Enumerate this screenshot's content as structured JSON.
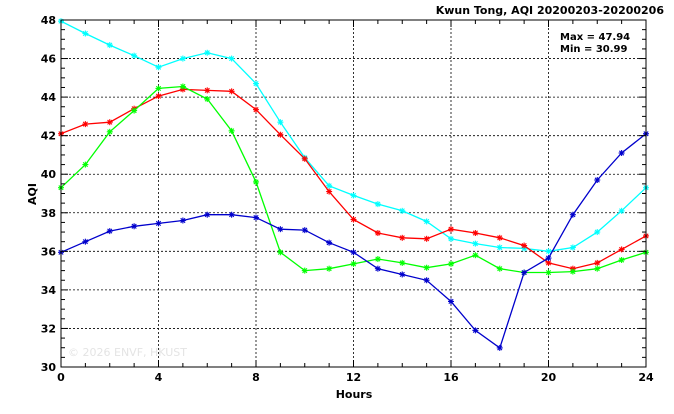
{
  "chart_data": {
    "type": "line",
    "title": "Kwun Tong, AQI 20200203-20200206",
    "xlabel": "Hours",
    "ylabel": "AQI",
    "xlim": [
      0,
      24
    ],
    "ylim": [
      30,
      48
    ],
    "xticks": [
      0,
      4,
      8,
      12,
      16,
      20,
      24
    ],
    "yticks": [
      30,
      32,
      34,
      36,
      38,
      40,
      42,
      44,
      46,
      48
    ],
    "grid": true,
    "annotations": {
      "max": "Max = 47.94",
      "min": "Min = 30.99"
    },
    "watermark": "© 2026 ENVF, HKUST",
    "series": [
      {
        "color": "#00ffff",
        "x": [
          0,
          1,
          2,
          3,
          4,
          5,
          6,
          7,
          8,
          9,
          10,
          11,
          12,
          13,
          14,
          15,
          16,
          17,
          18,
          19,
          20,
          21,
          22,
          23,
          24
        ],
        "values": [
          47.94,
          47.3,
          46.7,
          46.15,
          45.55,
          46.0,
          46.3,
          46.0,
          44.7,
          42.7,
          40.85,
          39.4,
          38.9,
          38.45,
          38.1,
          37.55,
          36.65,
          36.4,
          36.2,
          36.15,
          36.0,
          36.2,
          37.0,
          38.1,
          39.3
        ]
      },
      {
        "color": "#ff0000",
        "x": [
          0,
          1,
          2,
          3,
          4,
          5,
          6,
          7,
          8,
          9,
          10,
          11,
          12,
          13,
          14,
          15,
          16,
          17,
          18,
          19,
          20,
          21,
          22,
          23,
          24
        ],
        "values": [
          42.1,
          42.6,
          42.7,
          43.4,
          44.05,
          44.4,
          44.35,
          44.3,
          43.35,
          42.05,
          40.8,
          39.1,
          37.65,
          36.95,
          36.7,
          36.65,
          37.15,
          36.95,
          36.7,
          36.3,
          35.4,
          35.1,
          35.4,
          36.1,
          36.8
        ]
      },
      {
        "color": "#00ff00",
        "x": [
          0,
          1,
          2,
          3,
          4,
          5,
          6,
          7,
          8,
          9,
          10,
          11,
          12,
          13,
          14,
          15,
          16,
          17,
          18,
          19,
          20,
          21,
          22,
          23,
          24
        ],
        "values": [
          39.3,
          40.5,
          42.2,
          43.3,
          44.45,
          44.55,
          43.9,
          42.25,
          39.6,
          35.95,
          35.0,
          35.1,
          35.35,
          35.6,
          35.4,
          35.15,
          35.35,
          35.8,
          35.1,
          34.9,
          34.9,
          34.95,
          35.1,
          35.55,
          35.95
        ]
      },
      {
        "color": "#0000cc",
        "x": [
          0,
          1,
          2,
          3,
          4,
          5,
          6,
          7,
          8,
          9,
          10,
          11,
          12,
          13,
          14,
          15,
          16,
          17,
          18,
          19,
          20,
          21,
          22,
          23,
          24
        ],
        "values": [
          35.95,
          36.5,
          37.05,
          37.3,
          37.45,
          37.6,
          37.9,
          37.9,
          37.75,
          37.15,
          37.1,
          36.45,
          35.95,
          35.1,
          34.8,
          34.5,
          33.4,
          31.9,
          30.99,
          34.9,
          35.65,
          37.9,
          39.7,
          41.1,
          42.1
        ]
      }
    ]
  }
}
